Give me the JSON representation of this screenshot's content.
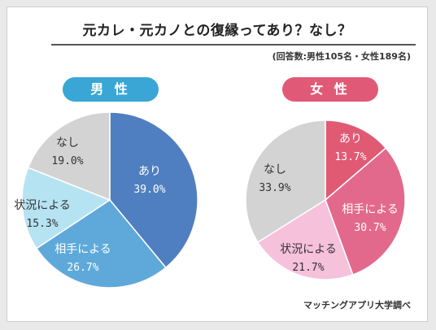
{
  "title": "元カレ・元カノとの復縁ってあり？なし？",
  "note": "(回答数:男性105名・女性189名)",
  "source": "マッチングアプリ大学調べ",
  "chart_data": [
    {
      "type": "pie",
      "title": "男 性",
      "accent": "#3aa6d6",
      "slices": [
        {
          "label": "あり",
          "value": 39.0,
          "value_text": "39.0%",
          "color": "#4f7fc0",
          "text_color": "#ffffff"
        },
        {
          "label": "相手による",
          "value": 26.7,
          "value_text": "26.7%",
          "color": "#5ea9da",
          "text_color": "#ffffff"
        },
        {
          "label": "状況による",
          "value": 15.3,
          "value_text": "15.3%",
          "color": "#b6e3f2",
          "text_color": "#333333"
        },
        {
          "label": "なし",
          "value": 19.0,
          "value_text": "19.0%",
          "color": "#d3d3d3",
          "text_color": "#333333"
        }
      ]
    },
    {
      "type": "pie",
      "title": "女 性",
      "accent": "#e05a77",
      "slices": [
        {
          "label": "あり",
          "value": 13.7,
          "value_text": "13.7%",
          "color": "#e05a74",
          "text_color": "#ffffff"
        },
        {
          "label": "相手による",
          "value": 30.7,
          "value_text": "30.7%",
          "color": "#e3698c",
          "text_color": "#ffffff"
        },
        {
          "label": "状況による",
          "value": 21.7,
          "value_text": "21.7%",
          "color": "#f6c1db",
          "text_color": "#333333"
        },
        {
          "label": "なし",
          "value": 33.9,
          "value_text": "33.9%",
          "color": "#d3d3d3",
          "text_color": "#333333"
        }
      ]
    }
  ]
}
